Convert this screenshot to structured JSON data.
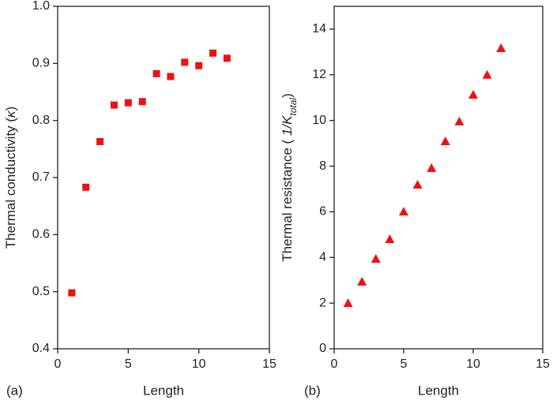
{
  "chart_data": [
    {
      "type": "scatter",
      "marker": "square",
      "color": "#ee1111",
      "panel_label": "(a)",
      "xlabel": "Length",
      "ylabel": [
        {
          "text": "Thermal conductivity ("
        },
        {
          "text": "κ",
          "style": "italic"
        },
        {
          "text": ")"
        }
      ],
      "xlim": [
        0,
        15
      ],
      "xticks": [
        0,
        5,
        10,
        15
      ],
      "ylim": [
        0.4,
        1.0
      ],
      "yticks": [
        0.4,
        0.5,
        0.6,
        0.7,
        0.8,
        0.9,
        {
          "value": 1.0,
          "label": "1.0"
        }
      ],
      "series": [
        {
          "x": [
            1,
            2,
            3,
            4,
            5,
            6,
            7,
            8,
            9,
            10,
            11,
            12
          ],
          "values": [
            0.498,
            0.683,
            0.763,
            0.827,
            0.831,
            0.833,
            0.882,
            0.877,
            0.902,
            0.896,
            0.918,
            0.909
          ]
        }
      ]
    },
    {
      "type": "scatter",
      "marker": "triangle",
      "color": "#ee1111",
      "panel_label": "(b)",
      "xlabel": "Length",
      "ylabel": [
        {
          "text": "Thermal resistance ( "
        },
        {
          "text": "1/K",
          "style": "italic"
        },
        {
          "text": "total",
          "style": "italic",
          "sub": true
        },
        {
          "text": ")"
        }
      ],
      "xlim": [
        0,
        15
      ],
      "xticks": [
        0,
        5,
        10,
        15
      ],
      "ylim": [
        0,
        15
      ],
      "yticks": [
        0,
        2,
        4,
        6,
        8,
        10,
        12,
        14
      ],
      "series": [
        {
          "x": [
            1,
            2,
            3,
            4,
            5,
            6,
            7,
            8,
            9,
            10,
            11,
            12
          ],
          "values": [
            2.0,
            2.94,
            3.94,
            4.8,
            6.01,
            7.19,
            7.92,
            9.09,
            9.96,
            11.13,
            12.0,
            13.17
          ]
        }
      ]
    }
  ]
}
